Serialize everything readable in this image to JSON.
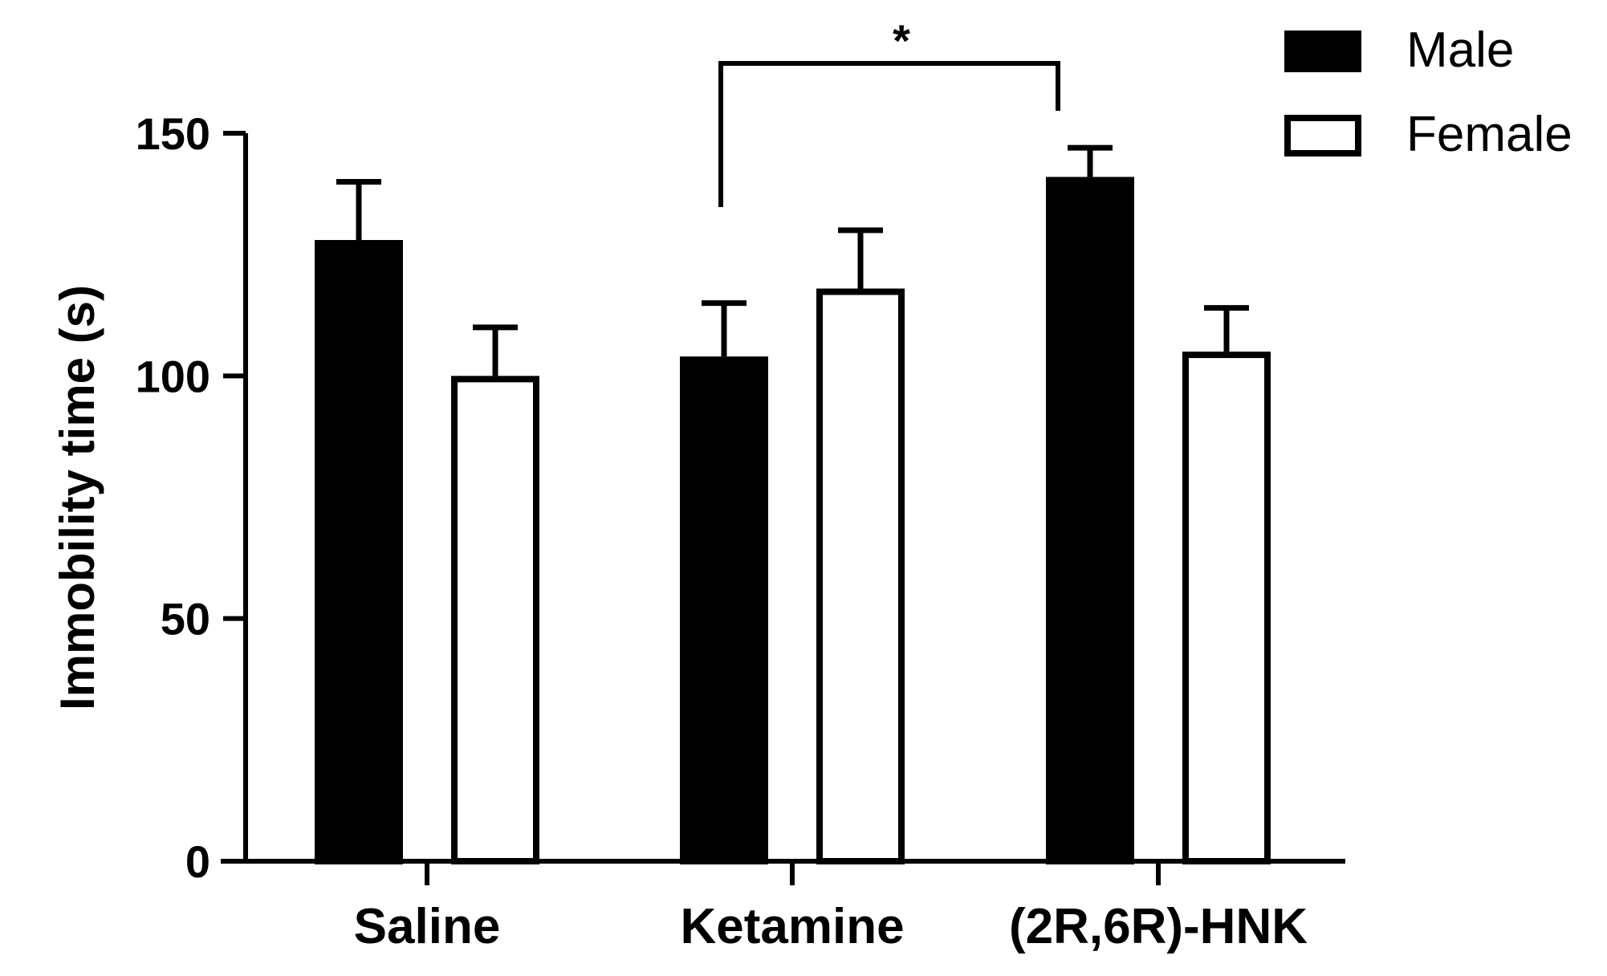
{
  "chart_data": {
    "type": "bar",
    "title": "",
    "xlabel": "",
    "ylabel": "Immobility time (s)",
    "ylim": [
      0,
      150
    ],
    "yticks": [
      0,
      50,
      100,
      150
    ],
    "grid": false,
    "legend_placement": "top-right",
    "categories": [
      "Saline",
      "Ketamine",
      "(2R,6R)-HNK"
    ],
    "series": [
      {
        "name": "Male",
        "fill": "#000000",
        "stroke": "#000000",
        "values": [
          128,
          104,
          141
        ],
        "errors": [
          12,
          11,
          6
        ]
      },
      {
        "name": "Female",
        "fill": "#ffffff",
        "stroke": "#000000",
        "values": [
          100,
          118,
          105
        ],
        "errors": [
          10,
          12,
          9
        ]
      }
    ],
    "annotations": [
      {
        "type": "significance-bracket",
        "label": "*",
        "from": "Ketamine",
        "to": "(2R,6R)-HNK"
      }
    ]
  }
}
